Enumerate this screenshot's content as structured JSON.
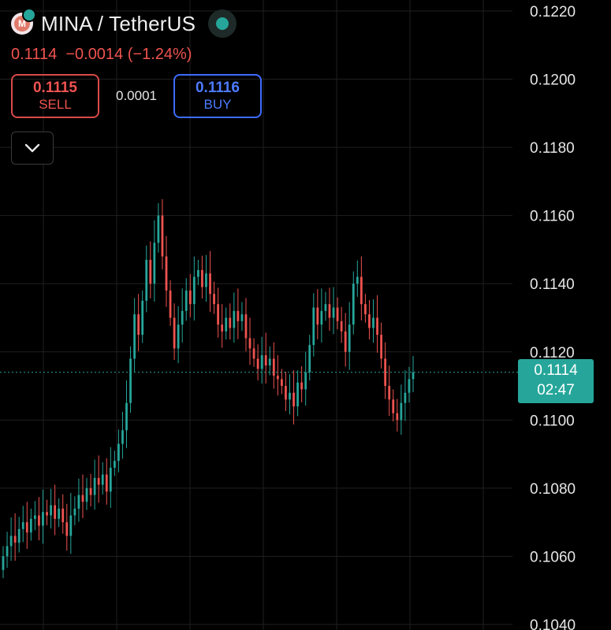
{
  "header": {
    "logo_letter": "M",
    "pair": "MINA / TetherUS",
    "live_icon": "live-status-dot-icon",
    "last_price": "0.1114",
    "change": "−0.0014",
    "change_pct": "(−1.24%)"
  },
  "trade": {
    "sell_price": "0.1115",
    "sell_label": "SELL",
    "spread": "0.0001",
    "buy_price": "0.1116",
    "buy_label": "BUY"
  },
  "toggle_icon": "chevron-down-icon",
  "colors": {
    "up": "#26a69a",
    "down": "#ef5350",
    "grid": "#1f1f1f",
    "current_line": "#26a69a"
  },
  "price_tag": {
    "price": "0.1114",
    "countdown": "02:47"
  },
  "chart_data": {
    "type": "candlestick",
    "y_axis": {
      "range": [
        0.104,
        0.1224
      ],
      "ticks": [
        "0.1220",
        "0.1200",
        "0.1180",
        "0.1160",
        "0.1140",
        "0.1120",
        "0.1100",
        "0.1080",
        "0.1060",
        "0.1040"
      ],
      "position": "right"
    },
    "grid": true,
    "current_price": 0.1114,
    "closes": [
      0.106,
      0.1063,
      0.1066,
      0.1064,
      0.1068,
      0.107,
      0.1067,
      0.1071,
      0.1072,
      0.1069,
      0.1073,
      0.1072,
      0.1075,
      0.1071,
      0.1074,
      0.107,
      0.1066,
      0.1072,
      0.1074,
      0.1078,
      0.1076,
      0.108,
      0.1078,
      0.1083,
      0.1081,
      0.1084,
      0.1079,
      0.1086,
      0.1088,
      0.1093,
      0.1097,
      0.1105,
      0.1118,
      0.1131,
      0.1125,
      0.1135,
      0.1147,
      0.114,
      0.1152,
      0.116,
      0.1148,
      0.1138,
      0.113,
      0.1121,
      0.1128,
      0.1132,
      0.1138,
      0.1134,
      0.1142,
      0.1144,
      0.1139,
      0.1143,
      0.1137,
      0.1134,
      0.1128,
      0.1126,
      0.113,
      0.1127,
      0.1132,
      0.1129,
      0.1131,
      0.1124,
      0.1121,
      0.1118,
      0.1115,
      0.1119,
      0.1116,
      0.1118,
      0.1113,
      0.1112,
      0.111,
      0.1106,
      0.1108,
      0.1104,
      0.1111,
      0.1109,
      0.1114,
      0.1122,
      0.1133,
      0.1128,
      0.1132,
      0.1134,
      0.113,
      0.1133,
      0.1129,
      0.1126,
      0.112,
      0.1128,
      0.114,
      0.1142,
      0.1134,
      0.1131,
      0.1127,
      0.113,
      0.1125,
      0.1118,
      0.111,
      0.1106,
      0.1102,
      0.11,
      0.1105,
      0.1108,
      0.1112,
      0.1114
    ]
  }
}
